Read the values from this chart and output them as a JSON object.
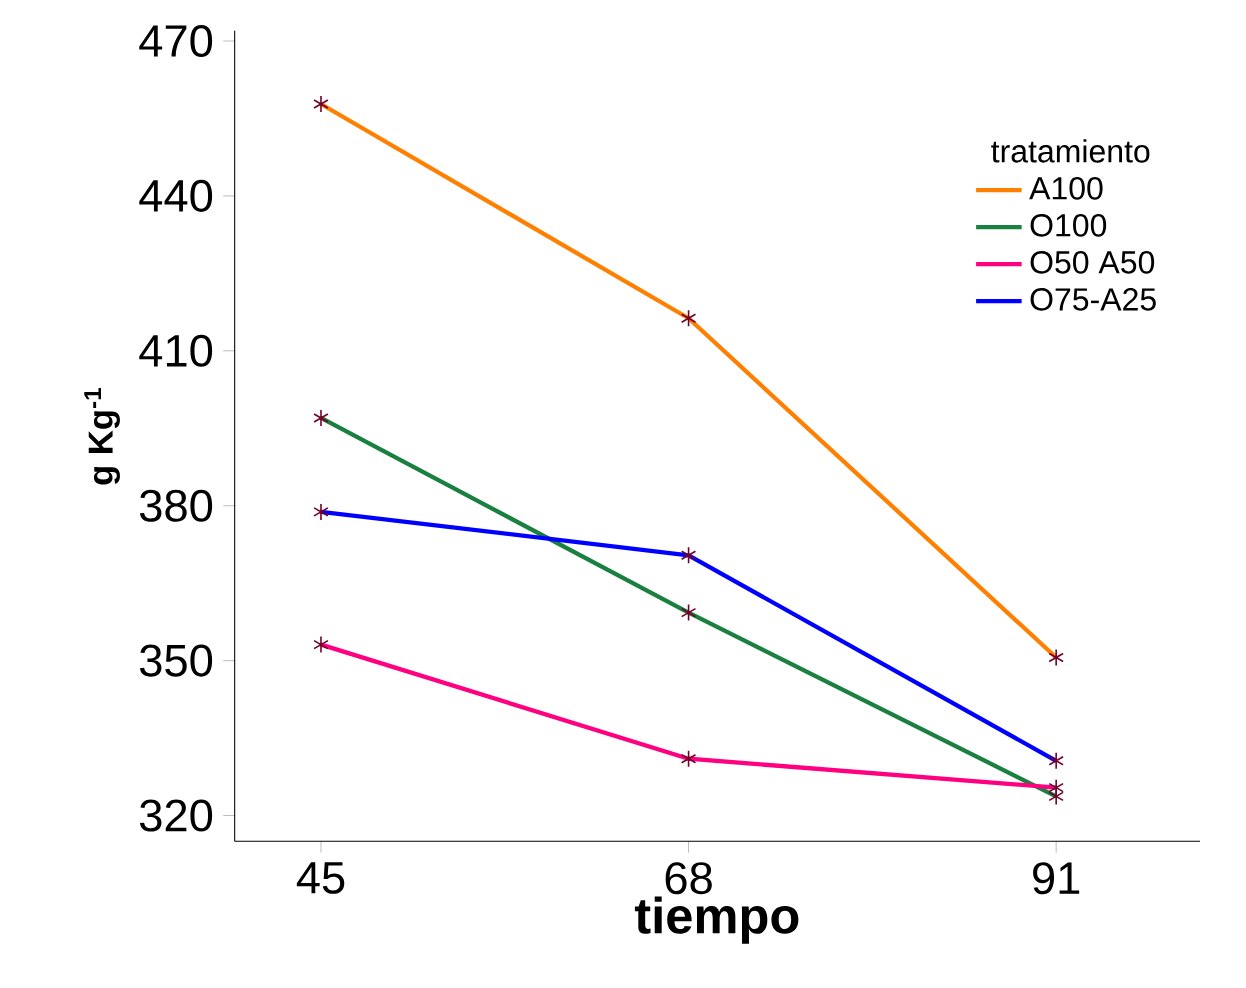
{
  "chart_data": {
    "type": "line",
    "xlabel": "tiempo",
    "ylabel": "g Kg$^{-1}$",
    "legend_title": "tratamiento",
    "legend": "top right",
    "marker": "cross",
    "grid": false,
    "x": [
      45,
      68,
      91
    ],
    "xlim": [
      39.6,
      100
    ],
    "xticks": [
      45,
      68,
      91
    ],
    "ylim": [
      315,
      472
    ],
    "yticks": [
      320,
      350,
      380,
      410,
      440,
      470
    ],
    "series": [
      {
        "name": "A100",
        "color": "#ff8000",
        "values": [
          457.8,
          416.3,
          350.6
        ]
      },
      {
        "name": "O100",
        "color": "#1a8040",
        "values": [
          397,
          359.3,
          323.7
        ]
      },
      {
        "name": "O50 A50",
        "color": "#ff0080",
        "values": [
          353.1,
          331,
          325.4
        ]
      },
      {
        "name": "O75-A25",
        "color": "#0000ff",
        "values": [
          378.8,
          370.4,
          330.6
        ]
      }
    ]
  }
}
